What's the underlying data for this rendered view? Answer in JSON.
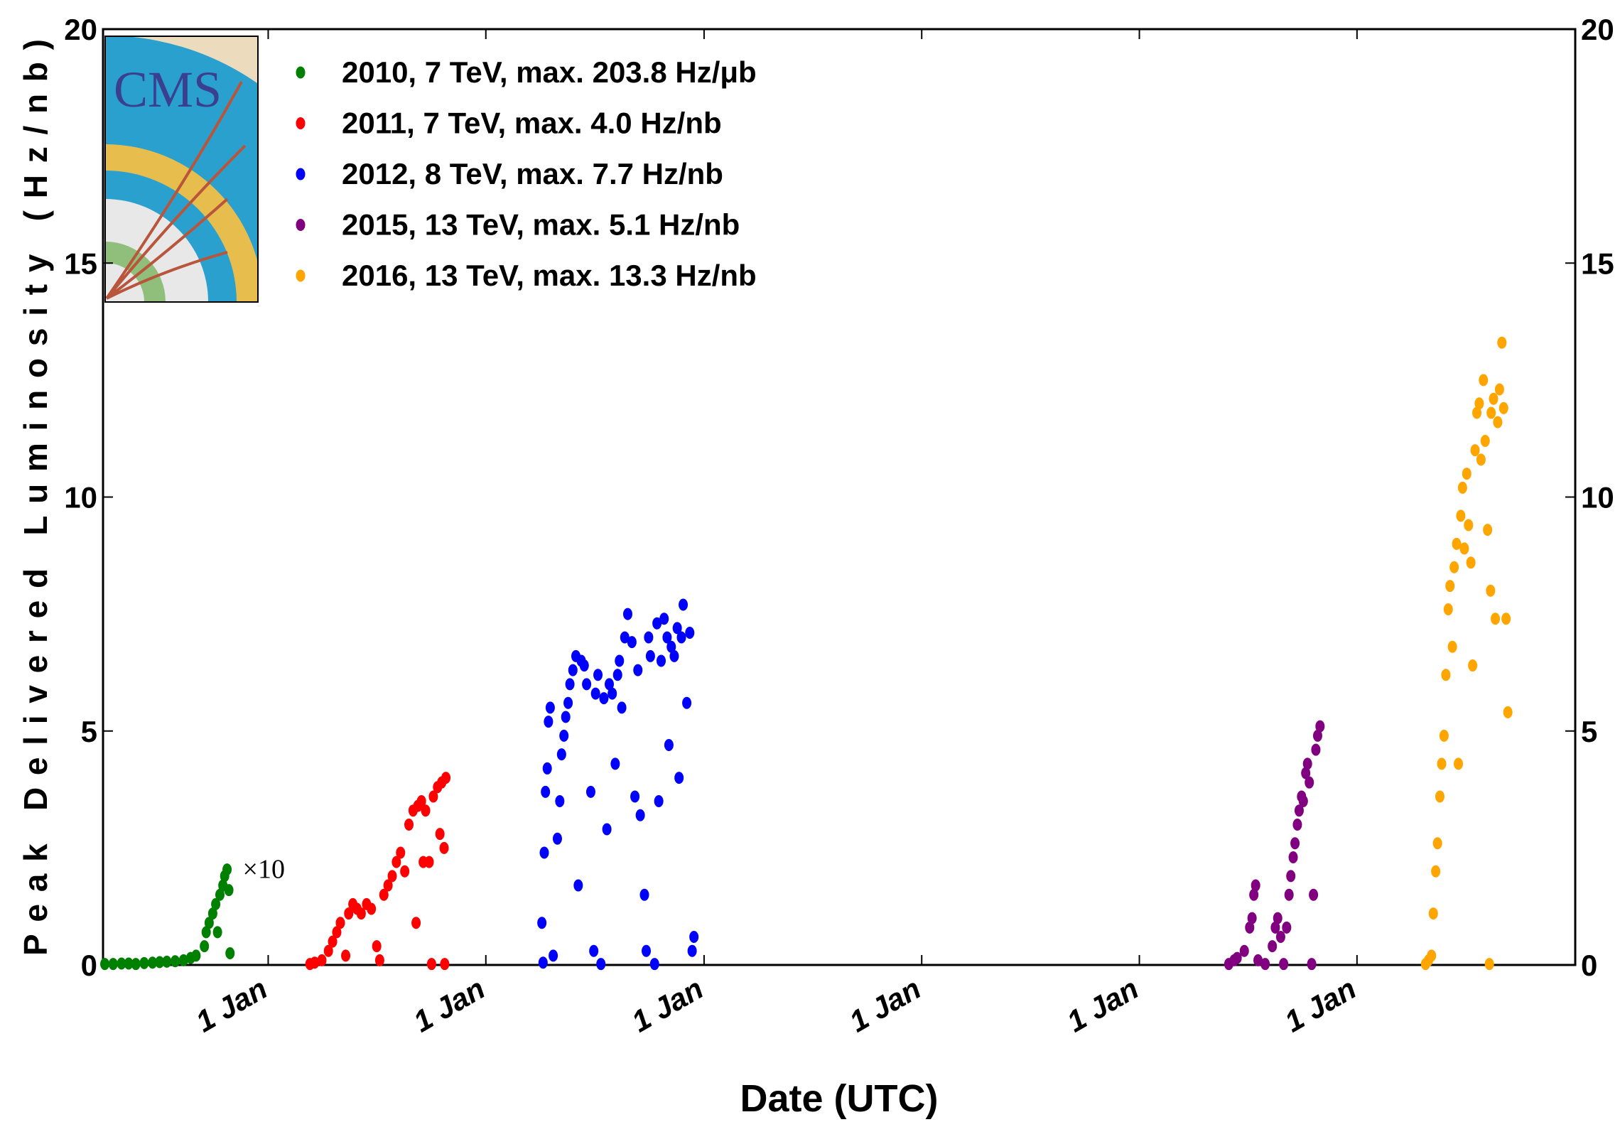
{
  "chart_data": {
    "type": "scatter",
    "y_label": "Peak Delivered Luminosity (Hz/nb)",
    "x_label": "Date (UTC)",
    "logo_text": "CMS",
    "annotation": "×10",
    "legend": "upper left",
    "xlim": [
      0,
      2469
    ],
    "xticks": [
      {
        "value": 277,
        "label": "1 Jan"
      },
      {
        "value": 642,
        "label": "1 Jan"
      },
      {
        "value": 1008,
        "label": "1 Jan"
      },
      {
        "value": 1373,
        "label": "1 Jan"
      },
      {
        "value": 1738,
        "label": "1 Jan"
      },
      {
        "value": 2103,
        "label": "1 Jan"
      }
    ],
    "ylim": [
      0,
      20
    ],
    "yticks": [
      0,
      5,
      10,
      15,
      20
    ],
    "y2lim": [
      0,
      20
    ],
    "y2ticks": [
      0,
      5,
      10,
      15,
      20
    ],
    "series": [
      {
        "name": "2010, 7 TeV, max. 203.8 Hz/μb",
        "color": "#008000",
        "x": [
          3,
          17,
          31,
          43,
          55,
          69,
          83,
          95,
          107,
          121,
          135,
          147,
          156,
          170,
          173,
          178,
          184,
          189,
          192,
          196,
          201,
          204,
          208,
          211,
          213
        ],
        "values": [
          0.02,
          0.02,
          0.03,
          0.03,
          0.02,
          0.04,
          0.05,
          0.06,
          0.07,
          0.08,
          0.1,
          0.15,
          0.2,
          0.4,
          0.7,
          0.9,
          1.1,
          1.3,
          0.7,
          1.5,
          1.7,
          1.9,
          2.04,
          1.6,
          0.25
        ]
      },
      {
        "name": "2011, 7 TeV, max. 4.0 Hz/nb",
        "color": "#ff0000",
        "x": [
          347,
          355,
          367,
          378,
          385,
          392,
          398,
          407,
          412,
          419,
          426,
          433,
          442,
          450,
          459,
          464,
          471,
          478,
          485,
          492,
          499,
          506,
          513,
          520,
          525,
          528,
          534,
          537,
          541,
          547,
          551,
          554,
          561,
          565,
          568,
          572,
          573,
          575
        ],
        "values": [
          0.02,
          0.05,
          0.1,
          0.3,
          0.5,
          0.7,
          0.9,
          0.2,
          1.1,
          1.3,
          1.2,
          1.1,
          1.3,
          1.2,
          0.4,
          0.1,
          1.5,
          1.7,
          1.9,
          2.2,
          2.4,
          2.0,
          3.0,
          3.3,
          0.9,
          3.4,
          3.5,
          2.2,
          3.3,
          2.2,
          0.02,
          3.6,
          3.8,
          2.8,
          3.9,
          2.5,
          0.02,
          4.0
        ]
      },
      {
        "name": "2012, 8 TeV, max. 7.7 Hz/nb",
        "color": "#0000ff",
        "x": [
          736,
          738,
          740,
          742,
          745,
          747,
          750,
          755,
          762,
          766,
          769,
          773,
          776,
          780,
          783,
          788,
          793,
          797,
          802,
          807,
          811,
          818,
          823,
          826,
          830,
          835,
          840,
          845,
          849,
          854,
          859,
          863,
          866,
          870,
          875,
          880,
          887,
          892,
          897,
          901,
          908,
          911,
          915,
          918,
          925,
          929,
          932,
          936,
          941,
          946,
          949,
          953,
          958,
          963,
          966,
          970,
          973,
          979,
          984,
          988,
          991
        ],
        "values": [
          0.9,
          0.05,
          2.4,
          3.7,
          4.2,
          5.2,
          5.5,
          0.2,
          2.7,
          3.5,
          4.5,
          4.9,
          5.3,
          5.6,
          6.0,
          6.3,
          6.6,
          1.7,
          6.5,
          6.4,
          6.0,
          3.7,
          0.3,
          5.8,
          6.2,
          0.02,
          5.7,
          2.9,
          6.0,
          5.8,
          4.3,
          6.2,
          6.5,
          5.5,
          7.0,
          7.5,
          6.9,
          3.6,
          6.3,
          3.2,
          1.5,
          0.3,
          7.0,
          6.6,
          0.02,
          7.3,
          3.5,
          6.5,
          7.4,
          7.0,
          4.7,
          6.8,
          6.6,
          7.2,
          4.0,
          7.0,
          7.7,
          5.6,
          7.1,
          0.3,
          0.6
        ]
      },
      {
        "name": "2015, 13 TeV, max. 5.1 Hz/nb",
        "color": "#800080",
        "x": [
          1888,
          1897,
          1902,
          1914,
          1923,
          1927,
          1930,
          1933,
          1937,
          1949,
          1961,
          1966,
          1970,
          1975,
          1980,
          1985,
          1989,
          1992,
          1996,
          1999,
          2003,
          2006,
          2010,
          2013,
          2017,
          2020,
          2023,
          2027,
          2030,
          2034,
          2037,
          2041
        ],
        "values": [
          0.02,
          0.1,
          0.15,
          0.3,
          0.8,
          1.0,
          1.5,
          1.7,
          0.1,
          0.02,
          0.4,
          0.8,
          1.0,
          0.6,
          0.02,
          0.8,
          1.5,
          1.9,
          2.3,
          2.6,
          3.0,
          3.3,
          3.6,
          3.5,
          4.1,
          4.3,
          3.9,
          0.02,
          1.5,
          4.6,
          4.9,
          5.1
        ]
      },
      {
        "name": "2016, 13 TeV, max. 13.3 Hz/nb",
        "color": "#ffa500",
        "x": [
          2218,
          2223,
          2228,
          2231,
          2235,
          2238,
          2242,
          2245,
          2249,
          2252,
          2256,
          2259,
          2263,
          2266,
          2270,
          2273,
          2277,
          2280,
          2283,
          2287,
          2290,
          2294,
          2297,
          2301,
          2304,
          2308,
          2311,
          2315,
          2318,
          2322,
          2325,
          2327,
          2328,
          2332,
          2335,
          2339,
          2342,
          2346,
          2349,
          2353,
          2356
        ],
        "values": [
          0.02,
          0.1,
          0.2,
          1.1,
          2.0,
          2.6,
          3.6,
          4.3,
          4.9,
          6.2,
          7.6,
          8.1,
          6.8,
          8.5,
          9.0,
          4.3,
          9.6,
          10.2,
          8.9,
          10.5,
          9.4,
          8.6,
          6.4,
          11.0,
          11.8,
          12.0,
          10.8,
          12.5,
          11.2,
          9.3,
          0.02,
          8.0,
          11.8,
          12.1,
          7.4,
          11.6,
          12.3,
          13.3,
          11.9,
          7.4,
          5.4
        ]
      }
    ]
  }
}
